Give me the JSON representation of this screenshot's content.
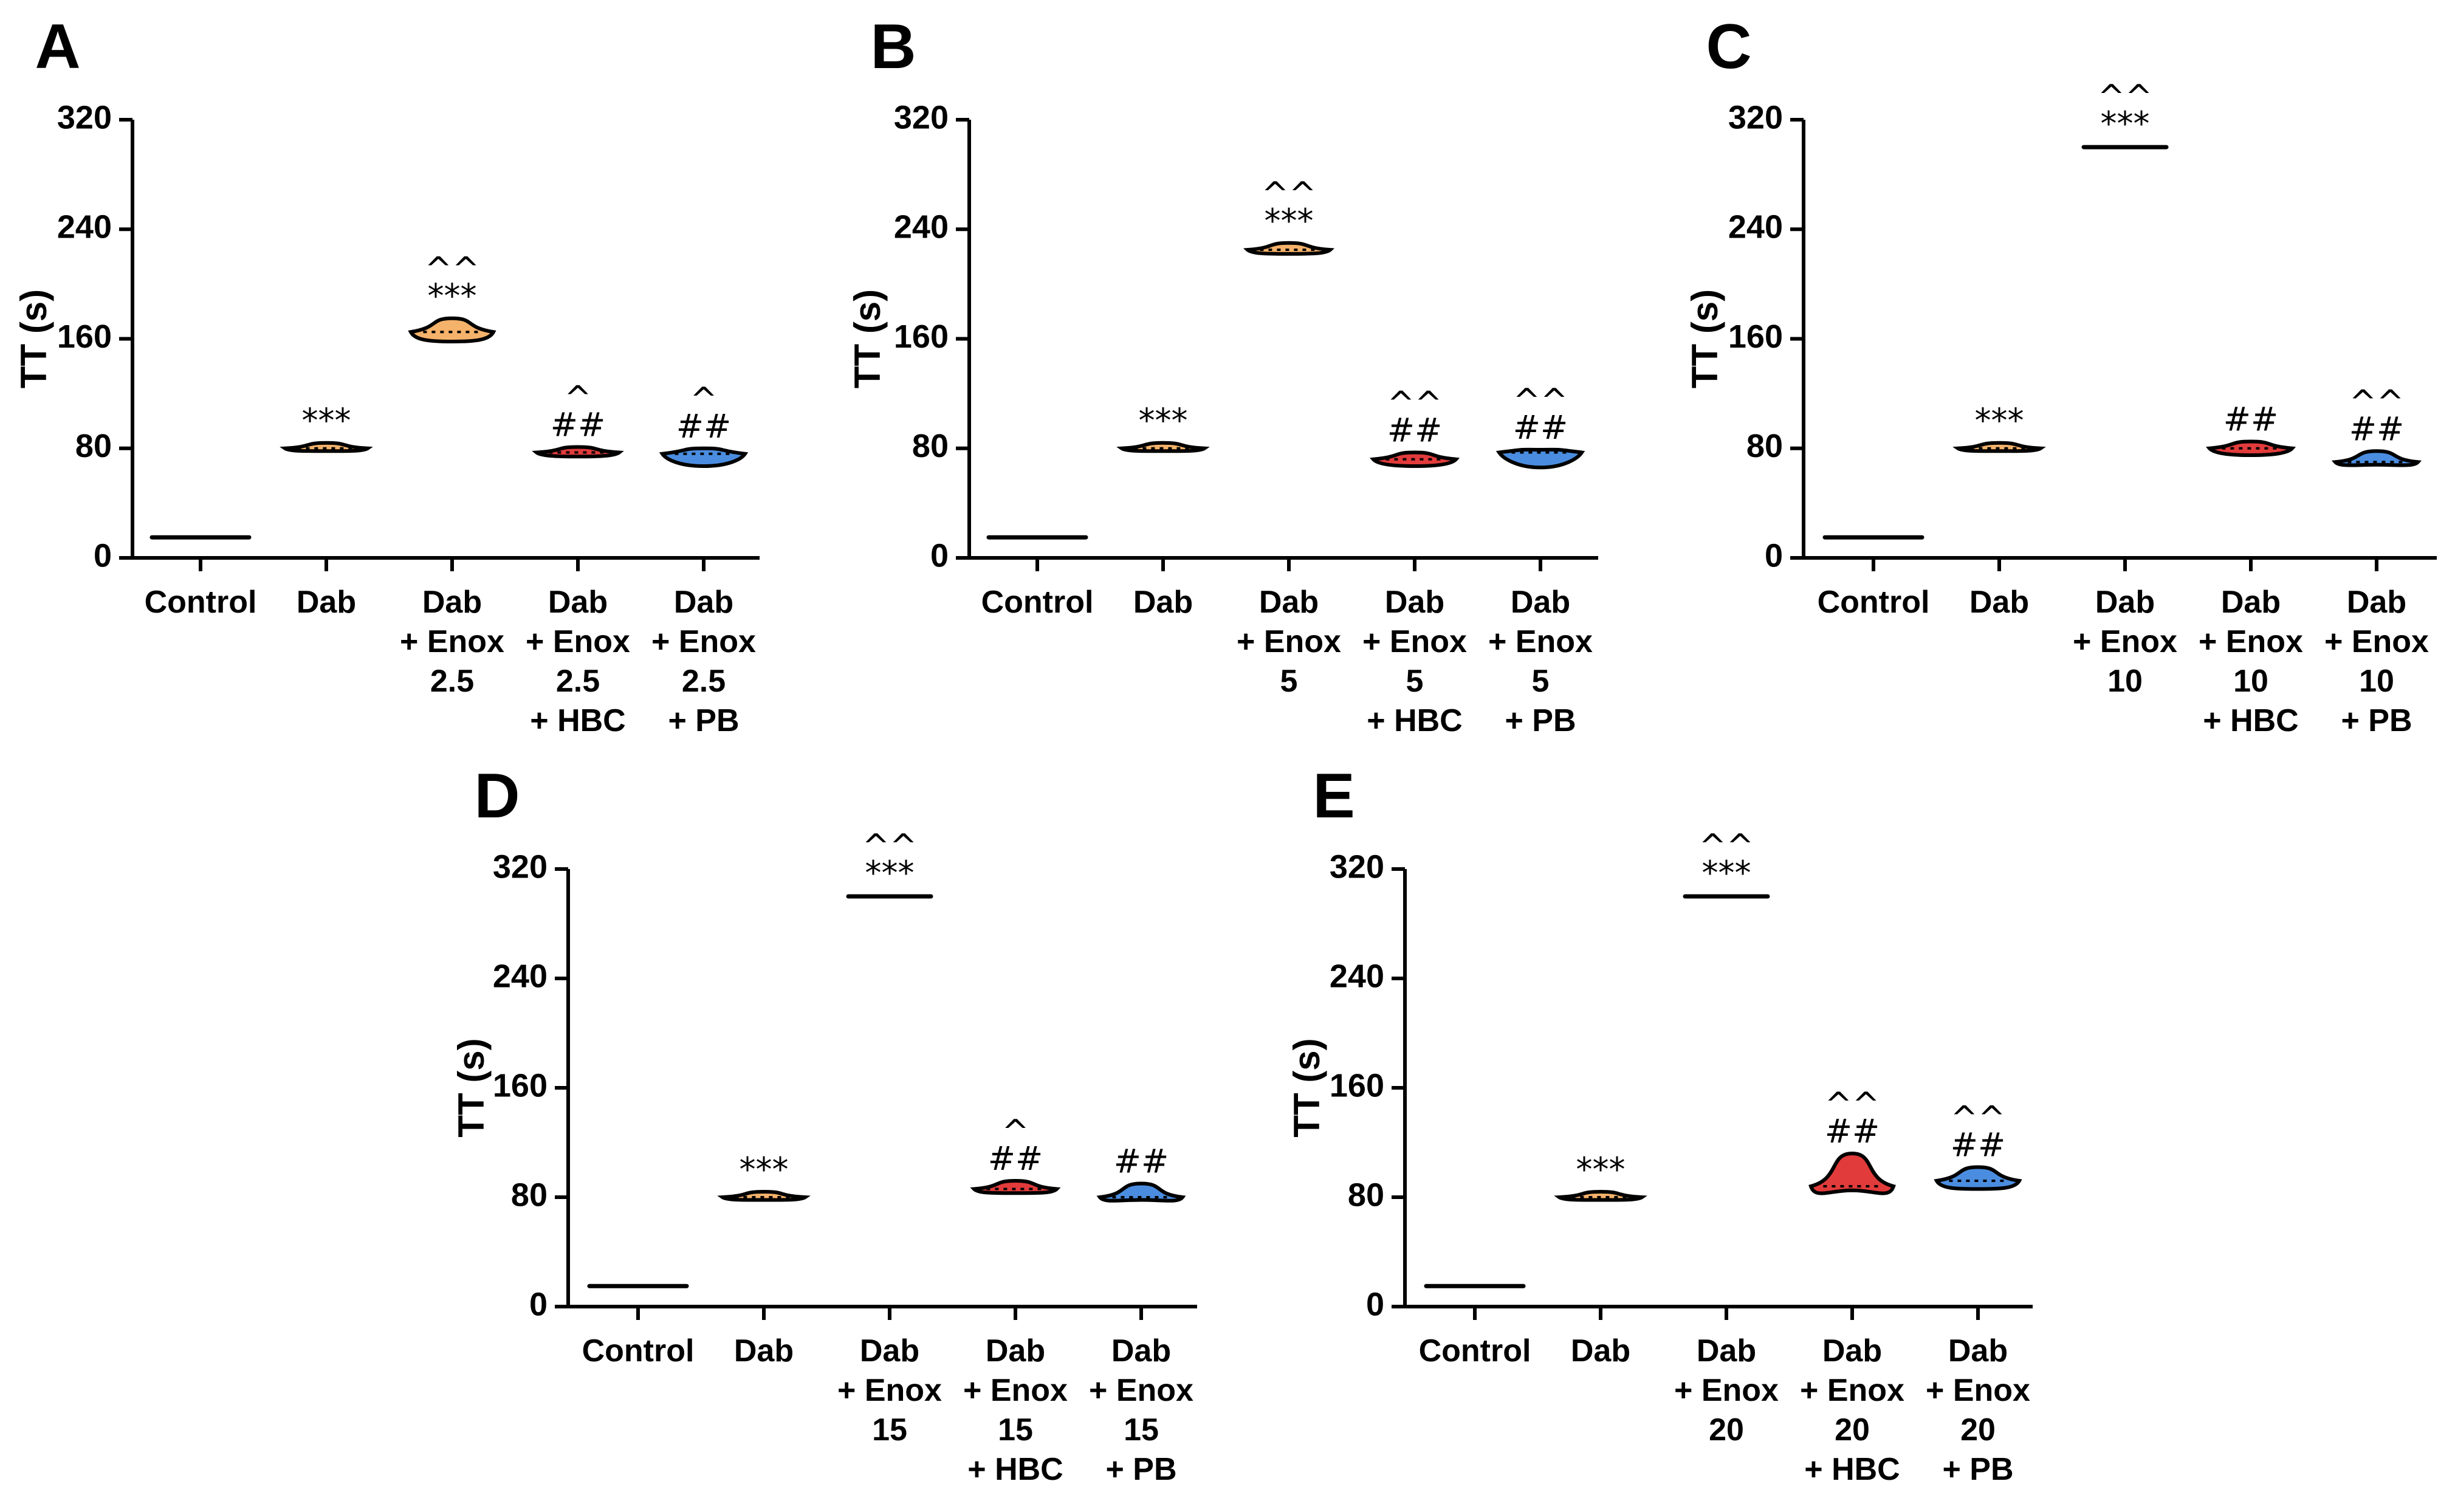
{
  "figure": {
    "y_axis_label": "TT (s)",
    "y_ticks": [
      0,
      80,
      160,
      240,
      320
    ]
  },
  "chart_data": [
    {
      "type": "violin",
      "panel": "A",
      "ylabel": "TT (s)",
      "ylim": [
        0,
        320
      ],
      "categories": [
        [
          "Control"
        ],
        [
          "Dab"
        ],
        [
          "Dab",
          "+ Enox",
          "2.5"
        ],
        [
          "Dab",
          "+ Enox",
          "2.5",
          "+ HBC"
        ],
        [
          "Dab",
          "+ Enox",
          "2.5",
          "+ PB"
        ]
      ],
      "values": [
        {
          "min": 15,
          "median": 15,
          "max": 16
        },
        {
          "min": 78,
          "median": 80,
          "max": 84
        },
        {
          "min": 158,
          "median": 165,
          "max": 175
        },
        {
          "min": 74,
          "median": 77,
          "max": 81
        },
        {
          "min": 67,
          "median": 76,
          "max": 80
        }
      ],
      "colors": [
        "#000000",
        "#f5b26b",
        "#f5b26b",
        "#e23b3b",
        "#4a8de0"
      ],
      "annotations": [
        [],
        [
          "***"
        ],
        [
          "^^",
          "***"
        ],
        [
          "^",
          "##"
        ],
        [
          "^",
          "##"
        ]
      ]
    },
    {
      "type": "violin",
      "panel": "B",
      "ylabel": "TT (s)",
      "ylim": [
        0,
        320
      ],
      "categories": [
        [
          "Control"
        ],
        [
          "Dab"
        ],
        [
          "Dab",
          "+ Enox",
          "5"
        ],
        [
          "Dab",
          "+ Enox",
          "5",
          "+ HBC"
        ],
        [
          "Dab",
          "+ Enox",
          "5",
          "+ PB"
        ]
      ],
      "values": [
        {
          "min": 15,
          "median": 15,
          "max": 16
        },
        {
          "min": 78,
          "median": 80,
          "max": 84
        },
        {
          "min": 222,
          "median": 225,
          "max": 230
        },
        {
          "min": 67,
          "median": 72,
          "max": 77
        },
        {
          "min": 66,
          "median": 77,
          "max": 79
        }
      ],
      "colors": [
        "#000000",
        "#f5b26b",
        "#f5b26b",
        "#e23b3b",
        "#4a8de0"
      ],
      "annotations": [
        [],
        [
          "***"
        ],
        [
          "^^",
          "***"
        ],
        [
          "^^",
          "##"
        ],
        [
          "^^",
          "##"
        ]
      ]
    },
    {
      "type": "violin",
      "panel": "C",
      "ylabel": "TT (s)",
      "ylim": [
        0,
        320
      ],
      "categories": [
        [
          "Control"
        ],
        [
          "Dab"
        ],
        [
          "Dab",
          "+ Enox",
          "10"
        ],
        [
          "Dab",
          "+ Enox",
          "10",
          "+ HBC"
        ],
        [
          "Dab",
          "+ Enox",
          "10",
          "+ PB"
        ]
      ],
      "values": [
        {
          "min": 15,
          "median": 15,
          "max": 16
        },
        {
          "min": 78,
          "median": 80,
          "max": 84
        },
        {
          "min": 300,
          "median": 300,
          "max": 301
        },
        {
          "min": 75,
          "median": 80,
          "max": 85
        },
        {
          "min": 68,
          "median": 70,
          "max": 78
        }
      ],
      "colors": [
        "#000000",
        "#f5b26b",
        "#f5b26b",
        "#e23b3b",
        "#4a8de0"
      ],
      "annotations": [
        [],
        [
          "***"
        ],
        [
          "^^",
          "***"
        ],
        [
          "##"
        ],
        [
          "^^",
          "##"
        ]
      ]
    },
    {
      "type": "violin",
      "panel": "D",
      "ylabel": "TT (s)",
      "ylim": [
        0,
        320
      ],
      "categories": [
        [
          "Control"
        ],
        [
          "Dab"
        ],
        [
          "Dab",
          "+ Enox",
          "15"
        ],
        [
          "Dab",
          "+ Enox",
          "15",
          "+ HBC"
        ],
        [
          "Dab",
          "+ Enox",
          "15",
          "+ PB"
        ]
      ],
      "values": [
        {
          "min": 15,
          "median": 15,
          "max": 16
        },
        {
          "min": 78,
          "median": 80,
          "max": 84
        },
        {
          "min": 300,
          "median": 300,
          "max": 301
        },
        {
          "min": 83,
          "median": 86,
          "max": 92
        },
        {
          "min": 78,
          "median": 80,
          "max": 90
        }
      ],
      "colors": [
        "#000000",
        "#f5b26b",
        "#f5b26b",
        "#e23b3b",
        "#4a8de0"
      ],
      "annotations": [
        [],
        [
          "***"
        ],
        [
          "^^",
          "***"
        ],
        [
          "^",
          "##"
        ],
        [
          "##"
        ]
      ]
    },
    {
      "type": "violin",
      "panel": "E",
      "ylabel": "TT (s)",
      "ylim": [
        0,
        320
      ],
      "categories": [
        [
          "Control"
        ],
        [
          "Dab"
        ],
        [
          "Dab",
          "+ Enox",
          "20"
        ],
        [
          "Dab",
          "+ Enox",
          "20",
          "+ HBC"
        ],
        [
          "Dab",
          "+ Enox",
          "20",
          "+ PB"
        ]
      ],
      "values": [
        {
          "min": 15,
          "median": 15,
          "max": 16
        },
        {
          "min": 78,
          "median": 80,
          "max": 84
        },
        {
          "min": 300,
          "median": 300,
          "max": 301
        },
        {
          "min": 85,
          "median": 88,
          "max": 112
        },
        {
          "min": 86,
          "median": 92,
          "max": 102
        }
      ],
      "colors": [
        "#000000",
        "#f5b26b",
        "#f5b26b",
        "#e23b3b",
        "#4a8de0"
      ],
      "annotations": [
        [],
        [
          "***"
        ],
        [
          "^^",
          "***"
        ],
        [
          "^^",
          "##"
        ],
        [
          "^^",
          "##"
        ]
      ]
    }
  ]
}
